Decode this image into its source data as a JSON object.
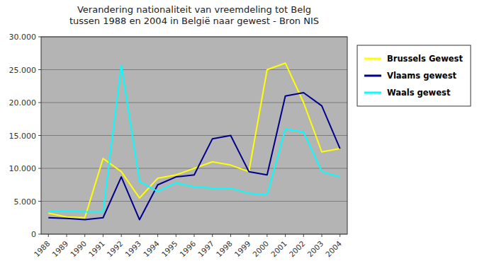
{
  "chart_data": {
    "type": "line",
    "title": "Verandering nationaliteit van vreemdeling tot Belg\ntussen 1988 en 2004 in België naar gewest - Bron NIS",
    "x": [
      1988,
      1989,
      1990,
      1991,
      1992,
      1993,
      1994,
      1995,
      1996,
      1997,
      1998,
      1999,
      2000,
      2001,
      2002,
      2003,
      2004
    ],
    "series": [
      {
        "name": "Brussels Gewest",
        "color": "#ffff00",
        "values": [
          3200,
          2600,
          2500,
          11500,
          9500,
          5500,
          8500,
          9000,
          10000,
          11000,
          10500,
          9500,
          25000,
          26000,
          20000,
          12500,
          13000
        ]
      },
      {
        "name": "Vlaams gewest",
        "color": "#00008b",
        "values": [
          2500,
          2400,
          2200,
          2500,
          8700,
          2200,
          7500,
          8700,
          9000,
          14500,
          15000,
          9500,
          9000,
          21000,
          21500,
          19500,
          13000
        ]
      },
      {
        "name": "Waals gewest",
        "color": "#00ffff",
        "values": [
          3500,
          3500,
          3400,
          3400,
          25700,
          8000,
          6500,
          7800,
          7200,
          7000,
          7000,
          6200,
          6000,
          16000,
          15500,
          9500,
          8700
        ]
      }
    ],
    "xlim": [
      1987.6,
      2004.4
    ],
    "xticks": [
      1988,
      1989,
      1990,
      1991,
      1992,
      1993,
      1994,
      1995,
      1996,
      1997,
      1998,
      1999,
      2000,
      2001,
      2002,
      2003,
      2004
    ],
    "ylim": [
      0,
      30000
    ],
    "yticks": [
      0,
      {
        "value": 5000,
        "label": "5.000"
      },
      {
        "value": 10000,
        "label": "10.000"
      },
      {
        "value": 15000,
        "label": "15.000"
      },
      {
        "value": 20000,
        "label": "20.000"
      },
      {
        "value": 25000,
        "label": "25.000"
      },
      {
        "value": 30000,
        "label": "30.000"
      }
    ],
    "grid": true,
    "legend": "right"
  }
}
